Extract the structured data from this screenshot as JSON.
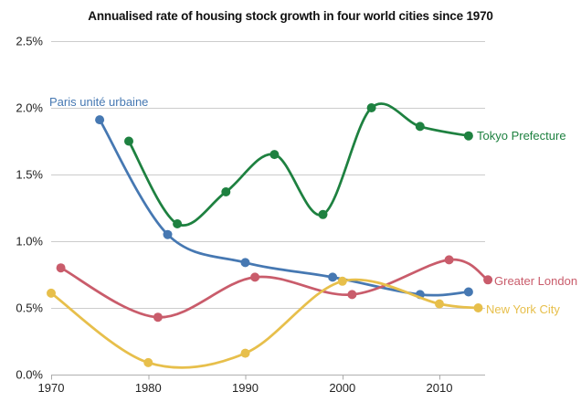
{
  "title": "Annualised rate of housing stock growth in four world cities since 1970",
  "colors": {
    "grid": "#cccccc",
    "axis": "#b0b0b0",
    "tick": "#aaaaaa",
    "text": "#222222",
    "title_text": "#111111"
  },
  "chart_data": {
    "type": "line",
    "title": "Annualised rate of housing stock growth in four world cities since 1970",
    "xlabel": "",
    "ylabel": "",
    "x_range": [
      1970,
      2015
    ],
    "ylim": [
      0,
      2.5
    ],
    "grid": "horizontal",
    "legend_position": "inline-end-labels",
    "x_ticks": [
      {
        "value": 1970,
        "label": "1970"
      },
      {
        "value": 1980,
        "label": "1980"
      },
      {
        "value": 1990,
        "label": "1990"
      },
      {
        "value": 2000,
        "label": "2000"
      },
      {
        "value": 2010,
        "label": "2010"
      }
    ],
    "y_ticks": [
      {
        "value": 0.0,
        "label": "0.0%"
      },
      {
        "value": 0.5,
        "label": "0.5%"
      },
      {
        "value": 1.0,
        "label": "1.0%"
      },
      {
        "value": 1.5,
        "label": "1.5%"
      },
      {
        "value": 2.0,
        "label": "2.0%"
      },
      {
        "value": 2.5,
        "label": "2.5%"
      }
    ],
    "series": [
      {
        "name": "Paris unité urbaine",
        "color": "#4678b2",
        "x": [
          1975,
          1982,
          1990,
          1999,
          2008,
          2013
        ],
        "values": [
          1.91,
          1.05,
          0.84,
          0.73,
          0.6,
          0.62
        ]
      },
      {
        "name": "Greater London",
        "color": "#c95c6b",
        "x": [
          1971,
          1981,
          1991,
          2001,
          2011,
          2015
        ],
        "values": [
          0.8,
          0.43,
          0.73,
          0.6,
          0.86,
          0.71
        ]
      },
      {
        "name": "New York City",
        "color": "#e7bf4b",
        "x": [
          1970,
          1980,
          1990,
          2000,
          2010,
          2014
        ],
        "values": [
          0.61,
          0.09,
          0.16,
          0.7,
          0.53,
          0.5
        ]
      },
      {
        "name": "Tokyo Prefecture",
        "color": "#1e8140",
        "x": [
          1978,
          1983,
          1988,
          1993,
          1998,
          2003,
          2008,
          2013
        ],
        "values": [
          1.75,
          1.13,
          1.37,
          1.65,
          1.2,
          2.0,
          1.86,
          1.79
        ]
      }
    ]
  }
}
